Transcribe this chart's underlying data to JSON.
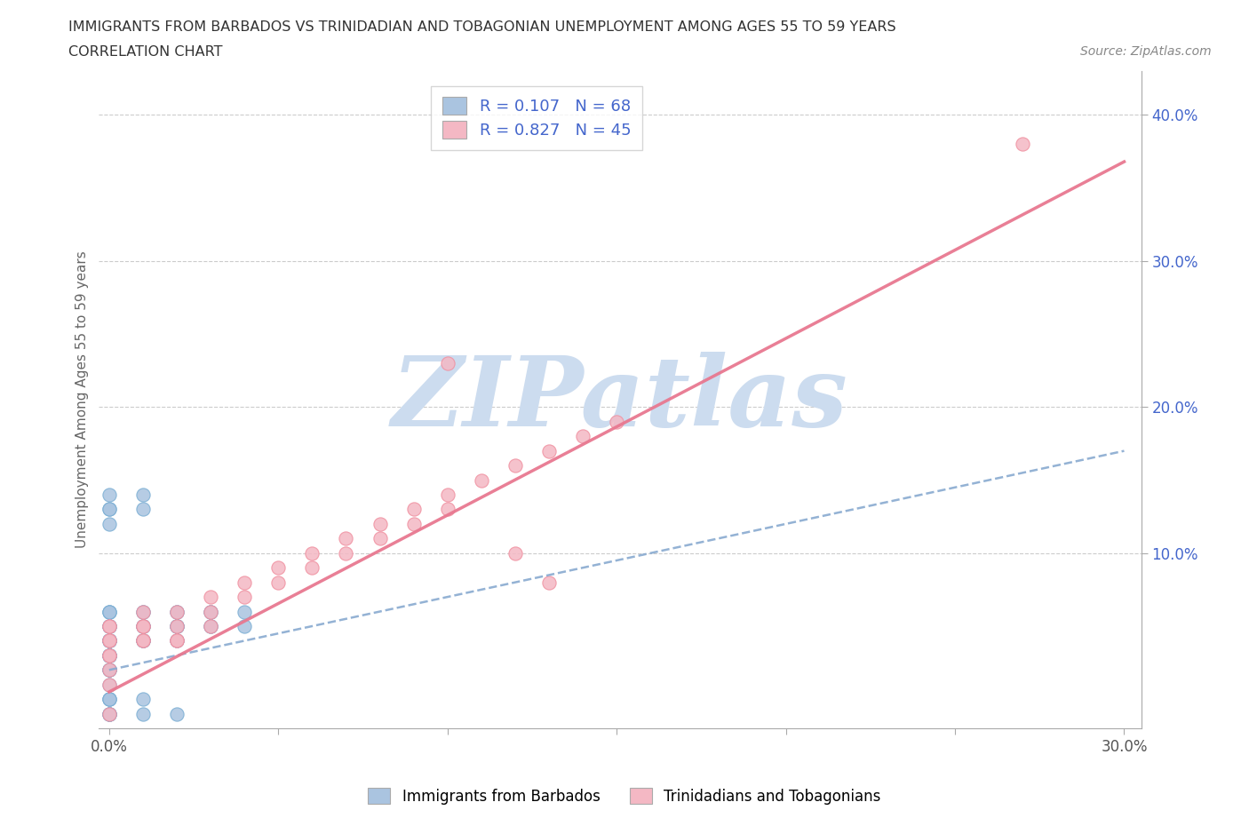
{
  "title_line1": "IMMIGRANTS FROM BARBADOS VS TRINIDADIAN AND TOBAGONIAN UNEMPLOYMENT AMONG AGES 55 TO 59 YEARS",
  "title_line2": "CORRELATION CHART",
  "source_text": "Source: ZipAtlas.com",
  "ylabel": "Unemployment Among Ages 55 to 59 years",
  "xlim": [
    -0.003,
    0.305
  ],
  "ylim": [
    -0.02,
    0.43
  ],
  "grid_color": "#cccccc",
  "background_color": "#ffffff",
  "watermark_text": "ZIPatlas",
  "watermark_color": "#ccdcef",
  "blue_color": "#aac4e0",
  "pink_color": "#f4b8c4",
  "blue_dot_edge": "#7bafd4",
  "pink_dot_edge": "#f090a0",
  "legend_text_color": "#4466cc",
  "blue_trend_color": "#88aad0",
  "pink_trend_color": "#e87890",
  "blue_scatter_x": [
    0.0,
    0.0,
    0.0,
    0.0,
    0.0,
    0.0,
    0.0,
    0.0,
    0.0,
    0.0,
    0.0,
    0.0,
    0.0,
    0.0,
    0.0,
    0.0,
    0.0,
    0.0,
    0.0,
    0.0,
    0.01,
    0.01,
    0.01,
    0.01,
    0.01,
    0.01,
    0.02,
    0.02,
    0.02,
    0.02,
    0.03,
    0.03,
    0.03,
    0.04,
    0.04,
    0.01,
    0.01,
    0.02,
    0.02,
    0.0,
    0.0,
    0.0,
    0.0,
    0.0,
    0.0,
    0.01,
    0.01,
    0.0,
    0.0,
    0.0,
    0.01,
    0.02,
    0.0,
    0.0,
    0.03,
    0.02,
    0.01,
    0.0,
    0.0,
    0.01,
    0.02,
    0.01,
    0.0,
    0.0,
    0.0,
    0.0,
    0.0,
    0.0
  ],
  "blue_scatter_y": [
    0.04,
    0.05,
    0.03,
    0.06,
    0.04,
    0.05,
    0.03,
    0.06,
    0.04,
    0.05,
    0.03,
    0.04,
    0.05,
    0.03,
    0.04,
    0.02,
    0.04,
    0.03,
    0.05,
    0.04,
    0.05,
    0.04,
    0.06,
    0.05,
    0.04,
    0.06,
    0.05,
    0.06,
    0.05,
    0.04,
    0.06,
    0.05,
    0.06,
    0.06,
    0.05,
    0.04,
    0.05,
    0.05,
    0.06,
    0.14,
    0.13,
    0.02,
    0.01,
    0.02,
    0.13,
    0.14,
    0.13,
    0.12,
    0.03,
    0.03,
    0.04,
    0.05,
    0.04,
    0.03,
    0.05,
    0.04,
    0.05,
    0.06,
    -0.01,
    -0.01,
    -0.01,
    0.0,
    -0.01,
    0.0,
    -0.01,
    -0.01,
    0.0,
    0.0
  ],
  "pink_scatter_x": [
    0.0,
    0.0,
    0.0,
    0.0,
    0.0,
    0.0,
    0.0,
    0.0,
    0.01,
    0.01,
    0.01,
    0.01,
    0.02,
    0.02,
    0.02,
    0.03,
    0.03,
    0.03,
    0.04,
    0.04,
    0.05,
    0.05,
    0.06,
    0.06,
    0.07,
    0.07,
    0.08,
    0.08,
    0.09,
    0.09,
    0.1,
    0.1,
    0.11,
    0.12,
    0.13,
    0.14,
    0.15,
    0.1,
    0.12,
    0.13,
    0.0,
    0.01,
    0.02,
    0.27
  ],
  "pink_scatter_y": [
    0.02,
    0.03,
    0.04,
    0.05,
    0.03,
    0.04,
    0.05,
    0.01,
    0.04,
    0.05,
    0.06,
    0.04,
    0.05,
    0.06,
    0.04,
    0.06,
    0.07,
    0.05,
    0.07,
    0.08,
    0.08,
    0.09,
    0.09,
    0.1,
    0.1,
    0.11,
    0.11,
    0.12,
    0.12,
    0.13,
    0.13,
    0.14,
    0.15,
    0.16,
    0.17,
    0.18,
    0.19,
    0.23,
    0.1,
    0.08,
    -0.01,
    0.05,
    0.04,
    0.38
  ],
  "blue_trend": [
    0.0,
    0.3,
    0.02,
    0.17
  ],
  "pink_trend": [
    0.0,
    0.3,
    0.005,
    0.368
  ]
}
